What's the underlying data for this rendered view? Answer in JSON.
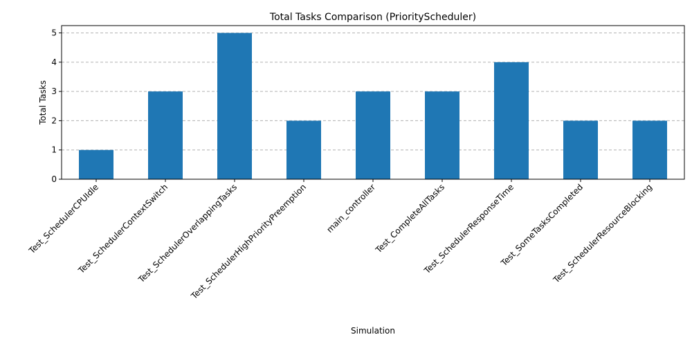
{
  "chart_data": {
    "type": "bar",
    "title": "Total Tasks Comparison (PriorityScheduler)",
    "xlabel": "Simulation",
    "ylabel": "Total Tasks",
    "categories": [
      "Test_SchedulerCPUIdle",
      "Test_SchedulerContextSwitch",
      "Test_SchedulerOverlappingTasks",
      "Test_SchedulerHighPriorityPreemption",
      "main_controller",
      "Test_CompleteAllTasks",
      "Test_SchedulerResponseTime",
      "Test_SomeTasksCompleted",
      "Test_SchedulerResourceBlocking"
    ],
    "values": [
      1,
      3,
      5,
      2,
      3,
      3,
      4,
      2,
      2
    ],
    "ylim": [
      0,
      5.25
    ],
    "yticks": [
      0,
      1,
      2,
      3,
      4,
      5
    ],
    "grid": "y-dashed",
    "bar_color": "#1f77b4",
    "grid_color": "#b0b0b0"
  }
}
